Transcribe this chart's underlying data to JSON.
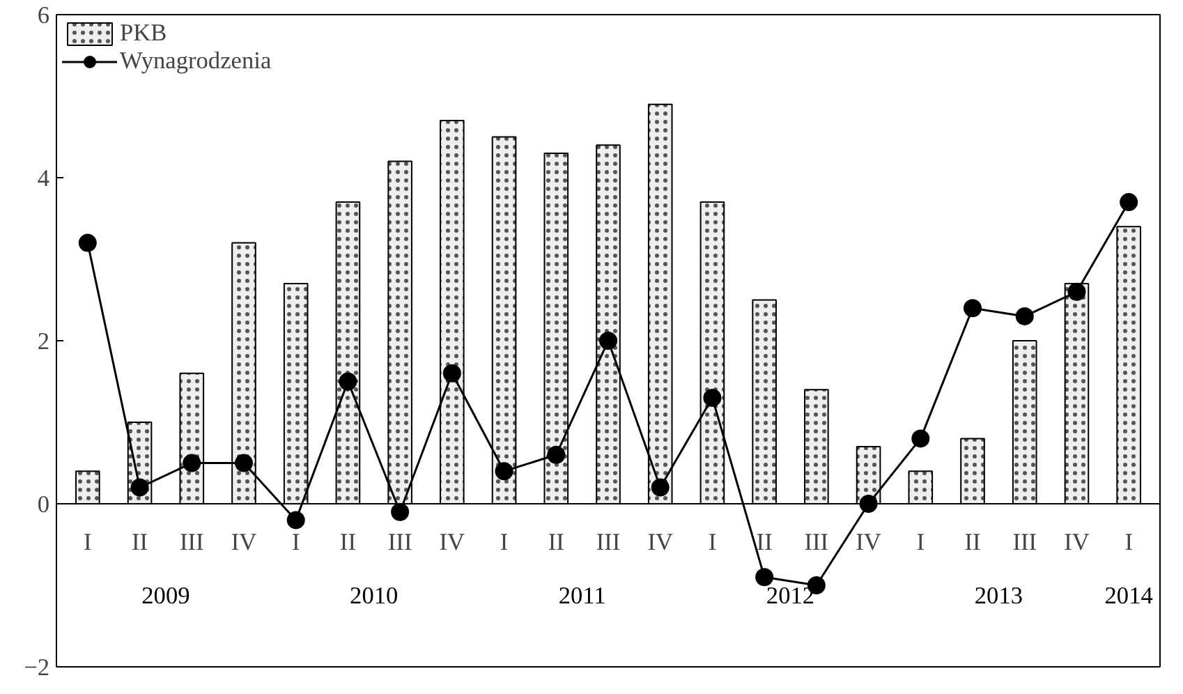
{
  "chart_data": {
    "type": "bar",
    "categories": [
      "I",
      "II",
      "III",
      "IV",
      "I",
      "II",
      "III",
      "IV",
      "I",
      "II",
      "III",
      "IV",
      "I",
      "II",
      "III",
      "IV",
      "I",
      "II",
      "III",
      "IV",
      "I"
    ],
    "series": [
      {
        "name": "PKB",
        "color": "#eeeeee",
        "values": [
          0.4,
          1.0,
          1.6,
          3.2,
          2.7,
          3.7,
          4.2,
          4.7,
          4.5,
          4.3,
          4.4,
          4.9,
          3.7,
          2.5,
          1.4,
          0.7,
          0.4,
          0.8,
          2.0,
          2.7,
          3.4
        ]
      },
      {
        "name": "Wynagrodzenia",
        "type": "line",
        "color": "#000000",
        "marker": "circle",
        "values": [
          3.2,
          0.2,
          0.5,
          0.5,
          -0.2,
          1.5,
          -0.1,
          1.6,
          0.4,
          0.6,
          2.0,
          0.2,
          1.3,
          -0.9,
          -1.0,
          0.0,
          0.8,
          2.4,
          2.3,
          2.6,
          3.7
        ]
      }
    ],
    "annotations": [
      "2009",
      "2010",
      "2011",
      "2012",
      "2013",
      "2014"
    ],
    "ylim": [
      -2,
      6
    ],
    "yticks": [
      -2,
      0,
      2,
      4,
      6
    ],
    "grid": false,
    "legend": "top left"
  }
}
